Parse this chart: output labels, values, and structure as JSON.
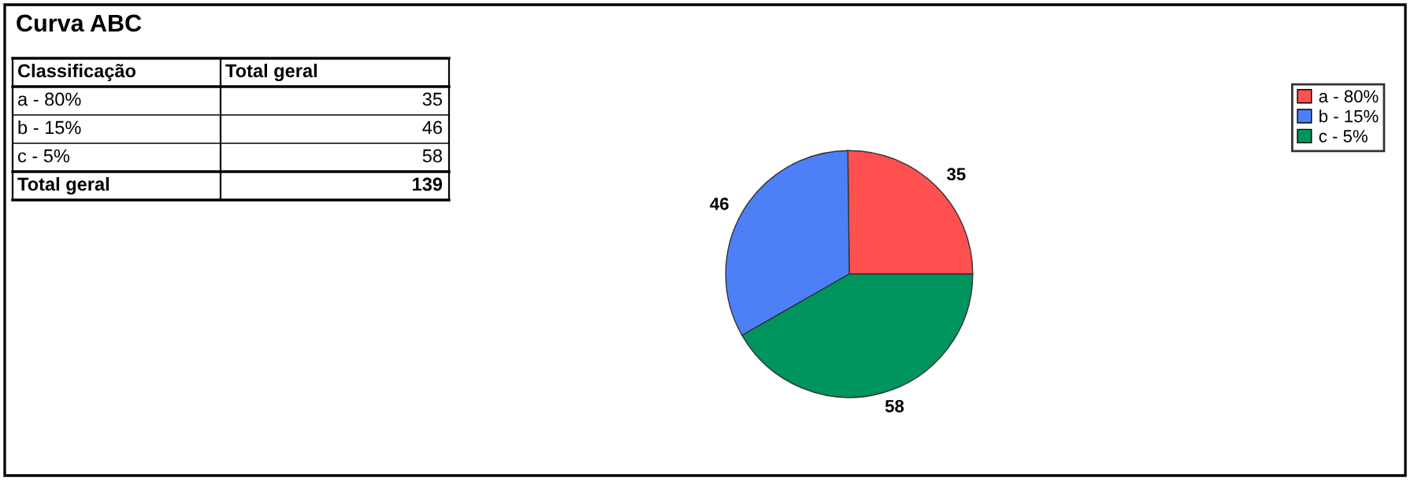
{
  "chart_data": {
    "type": "pie",
    "title": "Curva ABC",
    "categories": [
      "a - 80%",
      "b - 15%",
      "c - 5%"
    ],
    "values": [
      35,
      46,
      58
    ],
    "colors": [
      "#ff5050",
      "#4d7ff7",
      "#00945e"
    ],
    "data_labels": true,
    "legend": "top right",
    "annotations": [
      "Classificação",
      "Total geral",
      "35",
      "46",
      "58",
      "Total geral",
      "139"
    ]
  }
}
